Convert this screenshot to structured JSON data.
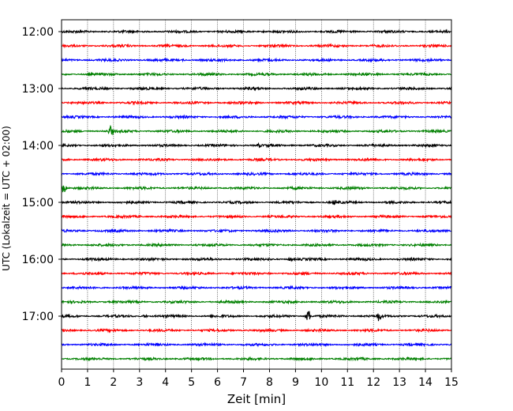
{
  "chart_data": {
    "type": "line",
    "title": "",
    "xlabel": "Zeit  [min]",
    "ylabel": "UTC (Lokalzeit = UTC + 02:00)",
    "xlim": [
      0,
      15
    ],
    "x_ticks": [
      0,
      1,
      2,
      3,
      4,
      5,
      6,
      7,
      8,
      9,
      10,
      11,
      12,
      13,
      14,
      15
    ],
    "y_tick_labels": [
      "12:00",
      "13:00",
      "14:00",
      "15:00",
      "16:00",
      "17:00"
    ],
    "trace_interval_min": 15,
    "start_time": "12:00",
    "trace_count": 24,
    "grid": "vertical-dotted",
    "colors": [
      "#000000",
      "#ff0000",
      "#0000ff",
      "#008000"
    ],
    "events": [
      {
        "trace": 0,
        "x": 7.8,
        "amp": 1.5
      },
      {
        "trace": 1,
        "x": 8.4,
        "amp": 2.5
      },
      {
        "trace": 2,
        "x": 4.7,
        "amp": 1.5
      },
      {
        "trace": 4,
        "x": 9.2,
        "amp": 1.5
      },
      {
        "trace": 7,
        "x": 1.9,
        "amp": 8
      },
      {
        "trace": 7,
        "x": 4.5,
        "amp": 2
      },
      {
        "trace": 8,
        "x": 7.6,
        "amp": 3
      },
      {
        "trace": 11,
        "x": 0.1,
        "amp": 7
      },
      {
        "trace": 11,
        "x": 9.0,
        "amp": 2.5
      },
      {
        "trace": 12,
        "x": 10.5,
        "amp": 4
      },
      {
        "trace": 13,
        "x": 3.0,
        "amp": 2
      },
      {
        "trace": 16,
        "x": 8.8,
        "amp": 3
      },
      {
        "trace": 17,
        "x": 8.0,
        "amp": 2
      },
      {
        "trace": 20,
        "x": 9.5,
        "amp": 9
      },
      {
        "trace": 20,
        "x": 12.2,
        "amp": 7
      },
      {
        "trace": 20,
        "x": 3.2,
        "amp": 2.5
      },
      {
        "trace": 20,
        "x": 6.2,
        "amp": 2.5
      }
    ]
  }
}
